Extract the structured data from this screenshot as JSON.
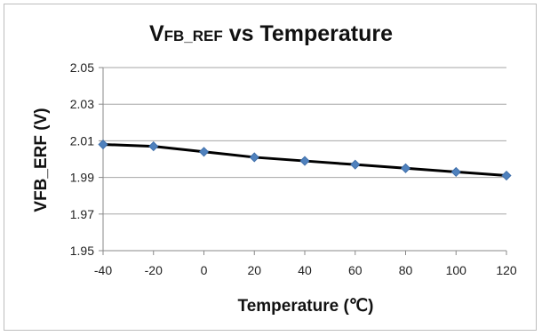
{
  "chart_data": {
    "type": "line",
    "title": "VFB_REF vs Temperature",
    "title_parts": {
      "v": "V",
      "sub": "FB_REF",
      "rest": " vs Temperature"
    },
    "xlabel": "Temperature (℃)",
    "ylabel": "VFB_ERF (V)",
    "x": [
      -40,
      -20,
      0,
      20,
      40,
      60,
      80,
      100,
      120
    ],
    "series": [
      {
        "values": [
          2.008,
          2.007,
          2.004,
          2.001,
          1.999,
          1.997,
          1.995,
          1.993,
          1.991
        ]
      }
    ],
    "xlim": [
      -40,
      120
    ],
    "ylim": [
      1.95,
      2.05
    ],
    "xticks": [
      "-40",
      "-20",
      "0",
      "20",
      "40",
      "60",
      "80",
      "100",
      "120"
    ],
    "yticks": [
      "1.95",
      "1.97",
      "1.99",
      "2.01",
      "2.03",
      "2.05"
    ],
    "grid": "horizontal",
    "legend": "none",
    "colors": {
      "line": "#000000",
      "marker": "#4f81bd",
      "grid": "#a6a6a6"
    }
  }
}
